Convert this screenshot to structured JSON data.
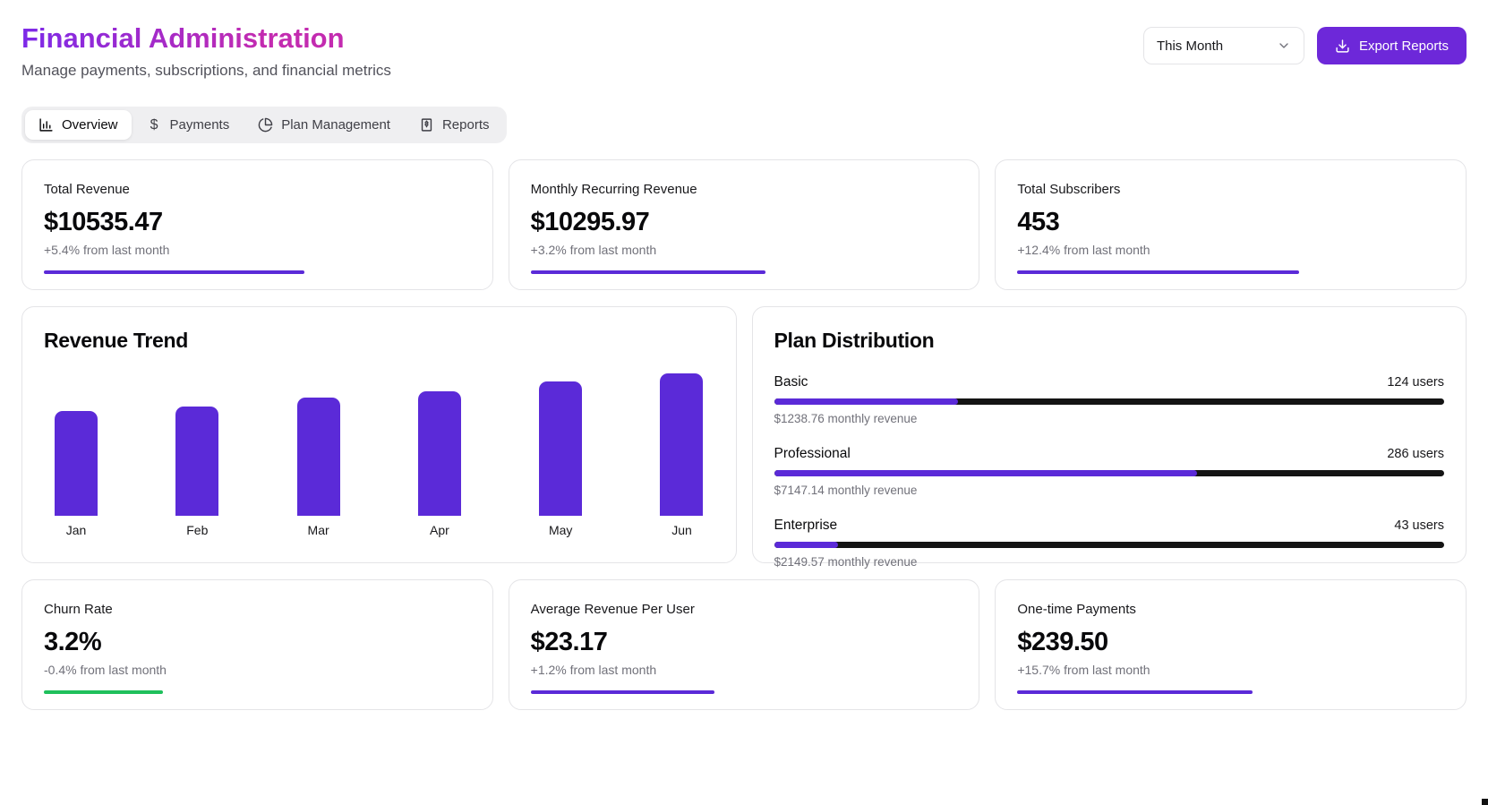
{
  "header": {
    "title": "Financial Administration",
    "subtitle": "Manage payments, subscriptions, and financial metrics"
  },
  "controls": {
    "period_value": "This Month",
    "export_label": "Export Reports"
  },
  "tabs": [
    {
      "label": "Overview",
      "icon": "bar-chart-icon",
      "active": true
    },
    {
      "label": "Payments",
      "icon": "dollar-icon",
      "active": false
    },
    {
      "label": "Plan Management",
      "icon": "pie-chart-icon",
      "active": false
    },
    {
      "label": "Reports",
      "icon": "receipt-icon",
      "active": false
    }
  ],
  "stats_top": [
    {
      "label": "Total Revenue",
      "value": "$10535.47",
      "change": "+5.4% from last month",
      "bar_pct": 61,
      "bar_color": "#5b2ad8"
    },
    {
      "label": "Monthly Recurring Revenue",
      "value": "$10295.97",
      "change": "+3.2% from last month",
      "bar_pct": 55,
      "bar_color": "#5b2ad8"
    },
    {
      "label": "Total Subscribers",
      "value": "453",
      "change": "+12.4% from last month",
      "bar_pct": 66,
      "bar_color": "#5b2ad8"
    }
  ],
  "revenue_trend": {
    "title": "Revenue Trend"
  },
  "plan_distribution": {
    "title": "Plan Distribution",
    "plans": [
      {
        "name": "Basic",
        "users": "124 users",
        "revenue": "$1238.76 monthly revenue",
        "fill_pct": 27.4
      },
      {
        "name": "Professional",
        "users": "286 users",
        "revenue": "$7147.14 monthly revenue",
        "fill_pct": 63.1
      },
      {
        "name": "Enterprise",
        "users": "43 users",
        "revenue": "$2149.57 monthly revenue",
        "fill_pct": 9.5
      }
    ]
  },
  "stats_bottom": [
    {
      "label": "Churn Rate",
      "value": "3.2%",
      "change": "-0.4% from last month",
      "bar_pct": 28,
      "bar_color": "#1fc05c"
    },
    {
      "label": "Average Revenue Per User",
      "value": "$23.17",
      "change": "+1.2% from last month",
      "bar_pct": 43,
      "bar_color": "#5b2ad8"
    },
    {
      "label": "One-time Payments",
      "value": "$239.50",
      "change": "+15.7% from last month",
      "bar_pct": 55,
      "bar_color": "#5b2ad8"
    }
  ],
  "chart_data": [
    {
      "type": "bar",
      "title": "Revenue Trend",
      "categories": [
        "Jan",
        "Feb",
        "Mar",
        "Apr",
        "May",
        "Jun"
      ],
      "values_pct_of_max": [
        73.5,
        77,
        83,
        87.5,
        94.5,
        100
      ],
      "xlabel": "",
      "ylabel": "",
      "axis_ticks_shown": false,
      "grid": false,
      "legend": false,
      "bar_color": "#5b2ad8"
    },
    {
      "type": "bar",
      "title": "Plan Distribution",
      "categories": [
        "Basic",
        "Professional",
        "Enterprise"
      ],
      "series": [
        {
          "name": "users",
          "values": [
            124,
            286,
            43
          ]
        },
        {
          "name": "monthly_revenue_usd",
          "values": [
            1238.76,
            7147.14,
            2149.57
          ]
        }
      ],
      "total_users": 453,
      "legend": false
    }
  ],
  "colors": {
    "accent_purple": "#5b2ad8",
    "button_purple": "#6d28d9",
    "title_gradient_from": "#7d2ae8",
    "title_gradient_to": "#c32bb0",
    "positive_green": "#1fc05c",
    "bar_track": "#141414"
  }
}
